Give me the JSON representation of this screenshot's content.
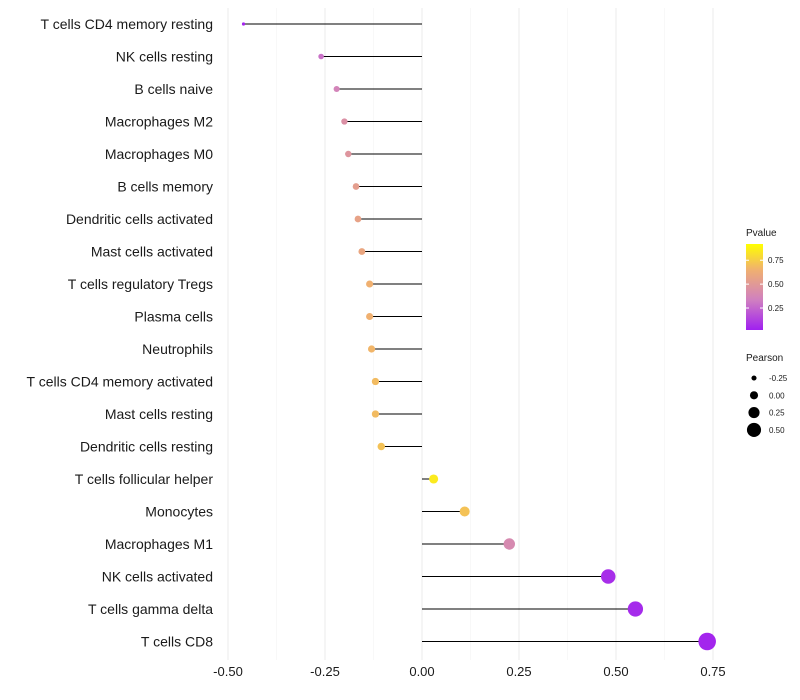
{
  "chart_data": {
    "type": "lollipop",
    "title": "",
    "xlabel": "",
    "ylabel": "",
    "xlim": [
      -0.5,
      0.75
    ],
    "x_ticks": [
      -0.5,
      -0.25,
      0.0,
      0.25,
      0.5,
      0.75
    ],
    "x_tick_labels": [
      "-0.50",
      "-0.25",
      "0.00",
      "0.25",
      "0.50",
      "0.75"
    ],
    "grid": true,
    "categories": [
      "T cells CD4 memory resting",
      "NK cells resting",
      "B cells naive",
      "Macrophages M2",
      "Macrophages M0",
      "B cells memory",
      "Dendritic cells activated",
      "Mast cells activated",
      "T cells regulatory  Tregs ",
      "Plasma cells",
      "Neutrophils",
      "T cells CD4 memory activated",
      "Mast cells resting",
      "Dendritic cells resting",
      "T cells follicular helper",
      "Monocytes",
      "Macrophages M1",
      "NK cells activated",
      "T cells gamma delta",
      "T cells CD8"
    ],
    "pearson": [
      -0.46,
      -0.26,
      -0.22,
      -0.2,
      -0.19,
      -0.17,
      -0.165,
      -0.155,
      -0.135,
      -0.135,
      -0.13,
      -0.12,
      -0.12,
      -0.105,
      0.03,
      0.11,
      0.225,
      0.48,
      0.55,
      0.735
    ],
    "pvalue": [
      0.02,
      0.3,
      0.38,
      0.47,
      0.5,
      0.57,
      0.6,
      0.63,
      0.7,
      0.7,
      0.72,
      0.74,
      0.74,
      0.77,
      0.92,
      0.77,
      0.42,
      0.05,
      0.04,
      0.02
    ],
    "color_legend": {
      "title": "Pvalue",
      "ticks": [
        0.75,
        0.5,
        0.25
      ],
      "tick_labels": [
        "0.75",
        "0.50",
        "0.25"
      ],
      "colors": [
        "#a020f0",
        "#d080c0",
        "#f0b070",
        "#ffff00"
      ]
    },
    "size_legend": {
      "title": "Pearson",
      "values": [
        -0.25,
        0.0,
        0.25,
        0.5
      ],
      "labels": [
        "-0.25",
        "0.00",
        "0.25",
        "0.50"
      ]
    },
    "legend_position": "right"
  }
}
